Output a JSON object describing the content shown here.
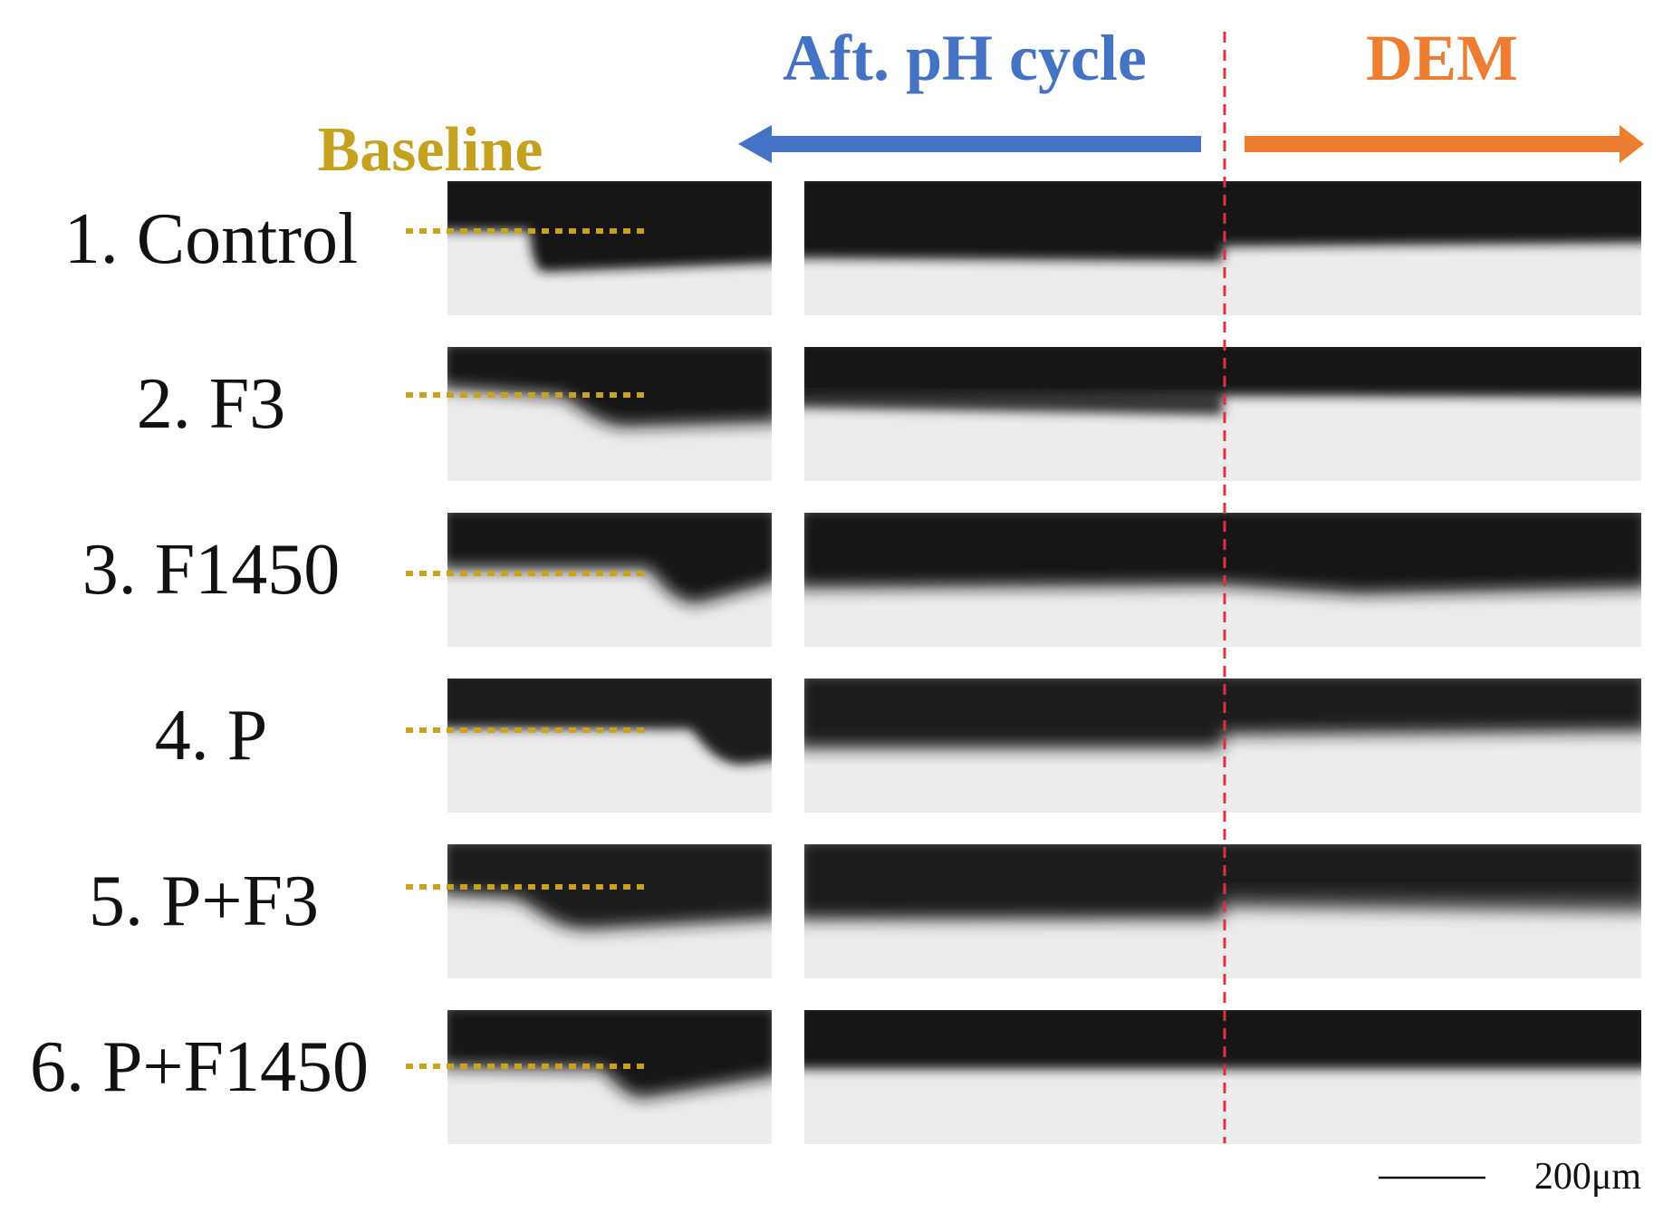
{
  "headers": {
    "baseline": "Baseline",
    "after_ph_cycle": "Aft. pH cycle",
    "dem": "DEM"
  },
  "colors": {
    "baseline": "#C4A220",
    "after_ph_cycle": "#4472C4",
    "dem": "#ED7D31",
    "divider": "#E0303A",
    "dotted_guide": "#C9A31E",
    "dark": "#141414",
    "light": "#ECECEC"
  },
  "rows": [
    {
      "label": "1. Control"
    },
    {
      "label": "2. F3"
    },
    {
      "label": "3. F1450"
    },
    {
      "label": "4. P"
    },
    {
      "label": "5. P+F3"
    },
    {
      "label": "6. P+F1450"
    }
  ],
  "scale_bar": {
    "label": "200μm"
  }
}
